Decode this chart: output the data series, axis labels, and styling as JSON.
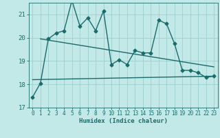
{
  "title": "",
  "xlabel": "Humidex (Indice chaleur)",
  "xlim": [
    -0.5,
    23.5
  ],
  "ylim": [
    17,
    21.5
  ],
  "yticks": [
    17,
    18,
    19,
    20,
    21
  ],
  "xticks": [
    0,
    1,
    2,
    3,
    4,
    5,
    6,
    7,
    8,
    9,
    10,
    11,
    12,
    13,
    14,
    15,
    16,
    17,
    18,
    19,
    20,
    21,
    22,
    23
  ],
  "bg_color": "#c2e8e8",
  "grid_color": "#9ecece",
  "line_color": "#1a6b6b",
  "main_data_x": [
    0,
    1,
    2,
    3,
    4,
    5,
    6,
    7,
    8,
    9,
    10,
    11,
    12,
    13,
    14,
    15,
    16,
    17,
    18,
    19,
    20,
    21,
    22,
    23
  ],
  "main_data_y": [
    17.45,
    18.05,
    19.95,
    20.2,
    20.3,
    21.6,
    20.5,
    20.85,
    20.3,
    21.15,
    18.85,
    19.05,
    18.85,
    19.45,
    19.35,
    19.35,
    20.75,
    20.6,
    19.75,
    18.6,
    18.6,
    18.5,
    18.3,
    18.35
  ],
  "upper_line_x": [
    1,
    23
  ],
  "upper_line_y": [
    19.95,
    18.75
  ],
  "lower_line_x": [
    0,
    23
  ],
  "lower_line_y": [
    18.2,
    18.35
  ],
  "marker_size": 2.5,
  "line_width": 1.0
}
